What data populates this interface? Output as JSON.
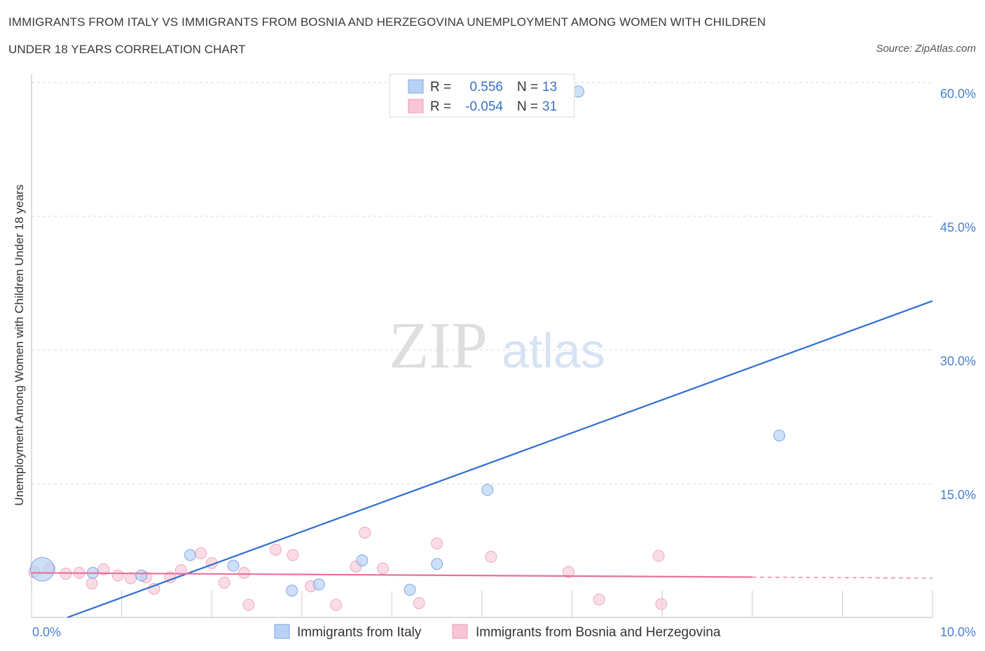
{
  "header": {
    "title_line1": "IMMIGRANTS FROM ITALY VS IMMIGRANTS FROM BOSNIA AND HERZEGOVINA UNEMPLOYMENT AMONG WOMEN WITH CHILDREN",
    "title_line2": "UNDER 18 YEARS CORRELATION CHART",
    "source": "Source: ZipAtlas.com"
  },
  "colors": {
    "italy": "#2f6fd4",
    "italy_fill": "#b9d1f5",
    "bosnia": "#e8709a",
    "bosnia_fill": "#f7c5d6",
    "axis_text": "#4a7fd0",
    "grid": "#d8d8d8"
  },
  "chart_data": {
    "type": "scatter",
    "title": "IMMIGRANTS FROM ITALY VS IMMIGRANTS FROM BOSNIA AND HERZEGOVINA UNEMPLOYMENT AMONG WOMEN WITH CHILDREN UNDER 18 YEARS CORRELATION CHART",
    "xlabel": "",
    "ylabel": "Unemployment Among Women with Children Under 18 years",
    "xlim": [
      0,
      10
    ],
    "ylim": [
      0,
      60
    ],
    "x_tick_labels": [
      "0.0%",
      "10.0%"
    ],
    "y_ticks": [
      15,
      30,
      45,
      60
    ],
    "y_tick_labels": [
      "15.0%",
      "30.0%",
      "45.0%",
      "60.0%"
    ],
    "grid": true,
    "legend": {
      "position": "top-center",
      "entries": [
        {
          "r_label": "R =",
          "r_value": "0.556",
          "n_label": "N =",
          "n_value": "13"
        },
        {
          "r_label": "R =",
          "r_value": "-0.054",
          "n_label": "N =",
          "n_value": "31"
        }
      ]
    },
    "series": [
      {
        "name": "Immigrants from Italy",
        "points": [
          [
            0.12,
            5.4
          ],
          [
            0.68,
            5.0
          ],
          [
            1.22,
            4.7
          ],
          [
            1.76,
            7.0
          ],
          [
            2.24,
            5.8
          ],
          [
            2.89,
            3.0
          ],
          [
            3.19,
            3.7
          ],
          [
            3.67,
            6.4
          ],
          [
            4.2,
            3.1
          ],
          [
            4.5,
            6.0
          ],
          [
            5.06,
            14.3
          ],
          [
            6.07,
            59.0
          ],
          [
            8.3,
            20.4
          ]
        ],
        "big_point_index": 0,
        "trend": {
          "x": [
            0.4,
            10.0
          ],
          "y": [
            0.0,
            35.5
          ],
          "dashed_from": null
        }
      },
      {
        "name": "Immigrants from Bosnia and Herzegovina",
        "points": [
          [
            0.03,
            5.1
          ],
          [
            0.2,
            5.5
          ],
          [
            0.38,
            4.9
          ],
          [
            0.53,
            5.0
          ],
          [
            0.67,
            3.8
          ],
          [
            0.8,
            5.4
          ],
          [
            0.96,
            4.7
          ],
          [
            1.1,
            4.4
          ],
          [
            1.27,
            4.5
          ],
          [
            1.36,
            3.2
          ],
          [
            1.54,
            4.5
          ],
          [
            1.66,
            5.3
          ],
          [
            1.88,
            7.2
          ],
          [
            2.0,
            6.1
          ],
          [
            2.14,
            3.9
          ],
          [
            2.36,
            5.0
          ],
          [
            2.41,
            1.4
          ],
          [
            2.71,
            7.6
          ],
          [
            2.9,
            7.0
          ],
          [
            3.1,
            3.5
          ],
          [
            3.38,
            1.4
          ],
          [
            3.6,
            5.7
          ],
          [
            3.7,
            9.5
          ],
          [
            3.9,
            5.5
          ],
          [
            4.3,
            1.6
          ],
          [
            4.5,
            8.3
          ],
          [
            5.1,
            6.8
          ],
          [
            5.96,
            5.1
          ],
          [
            6.3,
            2.0
          ],
          [
            6.96,
            6.9
          ],
          [
            6.99,
            1.5
          ]
        ],
        "trend": {
          "x": [
            0.0,
            10.0
          ],
          "y": [
            5.0,
            4.4
          ],
          "dashed_from": 8.0
        }
      }
    ],
    "watermark": {
      "zip": "ZIP",
      "atlas": "atlas"
    }
  },
  "bottom_legend": {
    "italy_label": "Immigrants from Italy",
    "bosnia_label": "Immigrants from Bosnia and Herzegovina"
  }
}
